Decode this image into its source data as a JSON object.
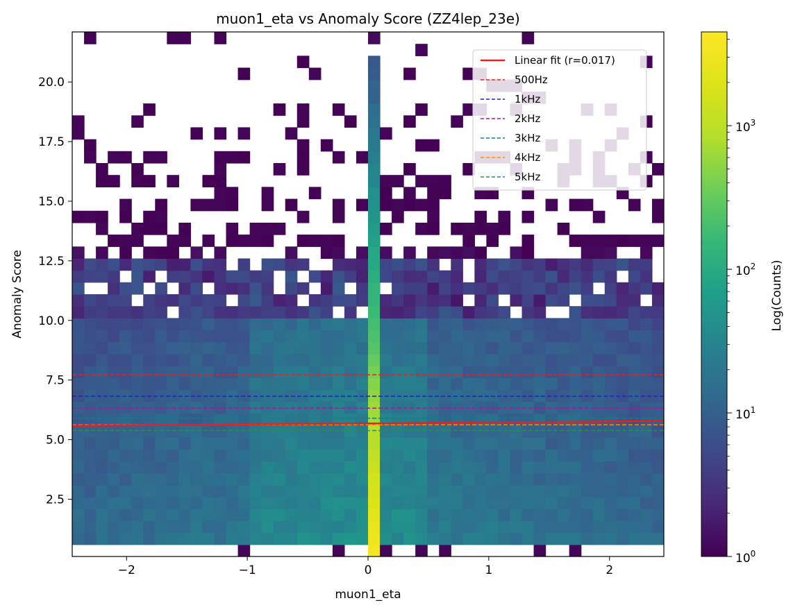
{
  "chart_data": {
    "type": "heatmap",
    "title": "muon1_eta vs Anomaly Score (ZZ4lep_23e)",
    "xlabel": "muon1_eta",
    "ylabel": "Anomaly Score",
    "xlim": [
      -2.45,
      2.45
    ],
    "ylim": [
      0.1,
      22.1
    ],
    "x_ticks": [
      {
        "value": -2,
        "label": "−2"
      },
      {
        "value": -1,
        "label": "−1"
      },
      {
        "value": 0,
        "label": "0"
      },
      {
        "value": 1,
        "label": "1"
      },
      {
        "value": 2,
        "label": "2"
      }
    ],
    "y_ticks": [
      {
        "value": 2.5,
        "label": "2.5"
      },
      {
        "value": 5.0,
        "label": "5.0"
      },
      {
        "value": 7.5,
        "label": "7.5"
      },
      {
        "value": 10.0,
        "label": "10.0"
      },
      {
        "value": 12.5,
        "label": "12.5"
      },
      {
        "value": 15.0,
        "label": "15.0"
      },
      {
        "value": 17.5,
        "label": "17.5"
      },
      {
        "value": 20.0,
        "label": "20.0"
      }
    ],
    "colorbar": {
      "label": "Log(Counts)",
      "scale": "log",
      "range": [
        1,
        4500
      ],
      "colormap": "viridis",
      "ticks": [
        {
          "value": 1,
          "base": "10",
          "exp": "0"
        },
        {
          "value": 10,
          "base": "10",
          "exp": "1"
        },
        {
          "value": 100,
          "base": "10",
          "exp": "2"
        },
        {
          "value": 1000,
          "base": "10",
          "exp": "3"
        }
      ]
    },
    "binning": {
      "x_bins": 50,
      "y_bins": 44,
      "x_range": [
        -2.45,
        2.45
      ],
      "y_range": [
        0.1,
        22.1
      ]
    },
    "density_profile": {
      "eta_peak_value": 0.05,
      "description_free_values": {
        "core_score_max": 12.8,
        "sparse_score_max": 21.1
      }
    },
    "fit_line": {
      "name": "Linear fit (r=0.017)",
      "color": "#e8211e",
      "points": [
        [
          -2.45,
          5.58
        ],
        [
          2.45,
          5.78
        ]
      ]
    },
    "thresholds": [
      {
        "name": "500Hz",
        "value": 7.72,
        "color": "#e8211e"
      },
      {
        "name": "1kHz",
        "value": 6.82,
        "color": "#1f1fd9"
      },
      {
        "name": "2kHz",
        "value": 6.32,
        "color": "#9b1c9b"
      },
      {
        "name": "3kHz",
        "value": 5.9,
        "color": "#118080"
      },
      {
        "name": "4kHz",
        "value": 5.62,
        "color": "#ff8c00"
      },
      {
        "name": "5kHz",
        "value": 5.38,
        "color": "#2e8b57"
      }
    ],
    "legend_position": "top-right"
  }
}
